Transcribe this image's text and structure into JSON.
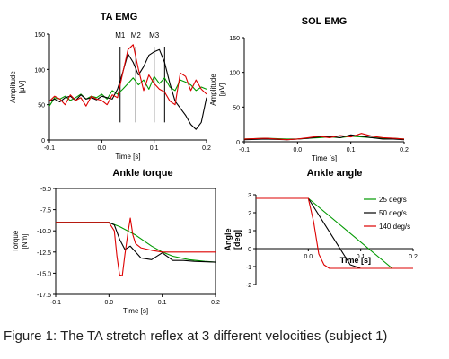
{
  "caption": "Figure 1: The TA stretch reflex at 3 different velocities (subject 1)",
  "colors": {
    "25 deg/s": "#009900",
    "50 deg/s": "#000000",
    "140 deg/s": "#dd0000"
  },
  "chart_data": [
    {
      "type": "line",
      "title": "TA EMG",
      "xlabel": "Time [s]",
      "ylabel": "Amplitude [μV]",
      "xlim": [
        -0.1,
        0.2
      ],
      "ylim": [
        0,
        150
      ],
      "xticks": [
        "-0.1",
        "0.0",
        "0.1",
        "0.2"
      ],
      "yticks": [
        "0",
        "50",
        "100",
        "150"
      ],
      "markers": [
        {
          "label": "M1",
          "x": 0.035
        },
        {
          "label": "M2",
          "x": 0.065
        },
        {
          "label": "M3",
          "x": 0.1
        },
        {
          "label": "",
          "x": 0.12
        }
      ],
      "series": [
        {
          "name": "25 deg/s",
          "color": "#009900",
          "x": [
            -0.1,
            -0.09,
            -0.08,
            -0.07,
            -0.06,
            -0.05,
            -0.04,
            -0.03,
            -0.02,
            -0.01,
            0.0,
            0.01,
            0.02,
            0.03,
            0.04,
            0.05,
            0.06,
            0.07,
            0.08,
            0.09,
            0.1,
            0.11,
            0.12,
            0.13,
            0.14,
            0.15,
            0.16,
            0.17,
            0.18,
            0.19,
            0.2
          ],
          "y": [
            48,
            60,
            58,
            62,
            56,
            60,
            65,
            58,
            62,
            60,
            65,
            58,
            70,
            65,
            72,
            80,
            88,
            78,
            85,
            72,
            90,
            80,
            88,
            75,
            70,
            85,
            82,
            78,
            70,
            75,
            72
          ]
        },
        {
          "name": "50 deg/s",
          "color": "#000000",
          "x": [
            -0.1,
            -0.09,
            -0.08,
            -0.07,
            -0.06,
            -0.05,
            -0.04,
            -0.03,
            -0.02,
            -0.01,
            0.0,
            0.01,
            0.02,
            0.03,
            0.04,
            0.05,
            0.06,
            0.07,
            0.08,
            0.09,
            0.1,
            0.11,
            0.12,
            0.13,
            0.14,
            0.15,
            0.16,
            0.17,
            0.18,
            0.19,
            0.2
          ],
          "y": [
            55,
            58,
            54,
            60,
            62,
            56,
            64,
            58,
            60,
            57,
            62,
            60,
            58,
            72,
            96,
            122,
            110,
            92,
            104,
            120,
            125,
            128,
            110,
            80,
            55,
            45,
            35,
            22,
            15,
            25,
            60
          ]
        },
        {
          "name": "140 deg/s",
          "color": "#dd0000",
          "x": [
            -0.1,
            -0.09,
            -0.08,
            -0.07,
            -0.06,
            -0.05,
            -0.04,
            -0.03,
            -0.02,
            -0.01,
            0.0,
            0.01,
            0.02,
            0.03,
            0.04,
            0.05,
            0.06,
            0.07,
            0.08,
            0.09,
            0.1,
            0.11,
            0.12,
            0.13,
            0.14,
            0.15,
            0.16,
            0.17,
            0.18,
            0.19,
            0.2
          ],
          "y": [
            55,
            62,
            58,
            50,
            64,
            56,
            60,
            48,
            62,
            58,
            56,
            50,
            64,
            60,
            95,
            128,
            135,
            100,
            70,
            92,
            80,
            72,
            68,
            55,
            50,
            95,
            90,
            70,
            85,
            72,
            65
          ]
        }
      ]
    },
    {
      "type": "line",
      "title": "SOL EMG",
      "xlabel": "Time [s]",
      "ylabel": "Amplitude [μV]",
      "xlim": [
        -0.1,
        0.2
      ],
      "ylim": [
        0,
        150
      ],
      "xticks": [
        "-0.1",
        "0.0",
        "0.1",
        "0.2"
      ],
      "yticks": [
        "0",
        "50",
        "100",
        "150"
      ],
      "series": [
        {
          "name": "25 deg/s",
          "color": "#009900",
          "x": [
            -0.1,
            -0.06,
            -0.02,
            0.0,
            0.02,
            0.04,
            0.06,
            0.08,
            0.1,
            0.12,
            0.14,
            0.16,
            0.18,
            0.2
          ],
          "y": [
            4,
            5,
            4,
            4,
            5,
            6,
            7,
            6,
            8,
            7,
            6,
            5,
            5,
            4
          ]
        },
        {
          "name": "50 deg/s",
          "color": "#000000",
          "x": [
            -0.1,
            -0.06,
            -0.02,
            0.0,
            0.02,
            0.04,
            0.06,
            0.08,
            0.1,
            0.12,
            0.14,
            0.16,
            0.18,
            0.2
          ],
          "y": [
            3,
            4,
            3,
            4,
            5,
            7,
            8,
            6,
            10,
            8,
            6,
            4,
            4,
            3
          ]
        },
        {
          "name": "140 deg/s",
          "color": "#dd0000",
          "x": [
            -0.1,
            -0.06,
            -0.02,
            0.0,
            0.02,
            0.04,
            0.06,
            0.08,
            0.1,
            0.12,
            0.14,
            0.16,
            0.18,
            0.2
          ],
          "y": [
            4,
            5,
            3,
            4,
            6,
            8,
            6,
            9,
            7,
            12,
            8,
            6,
            5,
            4
          ]
        }
      ]
    },
    {
      "type": "line",
      "title": "Ankle torque",
      "xlabel": "Time [s]",
      "ylabel": "Torque [Nm]",
      "xlim": [
        -0.1,
        0.2
      ],
      "ylim": [
        -17.5,
        -5.0
      ],
      "xticks": [
        "-0.1",
        "0.0",
        "0.1",
        "0.2"
      ],
      "yticks": [
        "-5.0",
        "-7.5",
        "-10.0",
        "-12.5",
        "-15.0",
        "-17.5"
      ],
      "series": [
        {
          "name": "25 deg/s",
          "color": "#009900",
          "x": [
            -0.1,
            0.0,
            0.02,
            0.05,
            0.08,
            0.1,
            0.12,
            0.15,
            0.18,
            0.2
          ],
          "y": [
            -9.0,
            -9.0,
            -9.5,
            -10.5,
            -11.8,
            -12.5,
            -13.0,
            -13.4,
            -13.6,
            -13.7
          ]
        },
        {
          "name": "50 deg/s",
          "color": "#000000",
          "x": [
            -0.1,
            0.0,
            0.01,
            0.02,
            0.03,
            0.04,
            0.05,
            0.06,
            0.08,
            0.1,
            0.12,
            0.14,
            0.16,
            0.2
          ],
          "y": [
            -9.0,
            -9.0,
            -9.3,
            -11.0,
            -12.2,
            -11.8,
            -12.5,
            -13.2,
            -13.4,
            -12.6,
            -13.5,
            -13.5,
            -13.6,
            -13.7
          ]
        },
        {
          "name": "140 deg/s",
          "color": "#dd0000",
          "x": [
            -0.1,
            0.0,
            0.01,
            0.015,
            0.02,
            0.025,
            0.03,
            0.035,
            0.04,
            0.045,
            0.05,
            0.06,
            0.08,
            0.1,
            0.15,
            0.2
          ],
          "y": [
            -9.0,
            -9.0,
            -10.0,
            -13.0,
            -15.2,
            -15.3,
            -12.8,
            -10.5,
            -8.5,
            -10.5,
            -11.5,
            -12.0,
            -12.3,
            -12.5,
            -12.5,
            -12.5
          ]
        }
      ]
    },
    {
      "type": "line",
      "title": "Ankle angle",
      "xlabel": "Time [s]",
      "ylabel": "Angle [deg]",
      "xlim": [
        -0.1,
        0.2
      ],
      "ylim": [
        -2,
        3
      ],
      "xticks": [
        "0.0",
        "0.1",
        "0.2"
      ],
      "yticks": [
        "-2",
        "-1",
        "0",
        "1",
        "2",
        "3"
      ],
      "legend_position": "top-right",
      "series": [
        {
          "name": "25 deg/s",
          "color": "#009900",
          "x": [
            -0.1,
            0.0,
            0.16,
            0.2
          ],
          "y": [
            2.8,
            2.8,
            -1.1,
            -1.1
          ]
        },
        {
          "name": "50 deg/s",
          "color": "#000000",
          "x": [
            -0.1,
            0.0,
            0.08,
            0.1,
            0.2
          ],
          "y": [
            2.8,
            2.8,
            -0.9,
            -1.1,
            -1.1
          ]
        },
        {
          "name": "140 deg/s",
          "color": "#dd0000",
          "x": [
            -0.1,
            0.0,
            0.01,
            0.02,
            0.03,
            0.04,
            0.2
          ],
          "y": [
            2.8,
            2.8,
            1.5,
            -0.3,
            -0.9,
            -1.1,
            -1.1
          ]
        }
      ]
    }
  ]
}
